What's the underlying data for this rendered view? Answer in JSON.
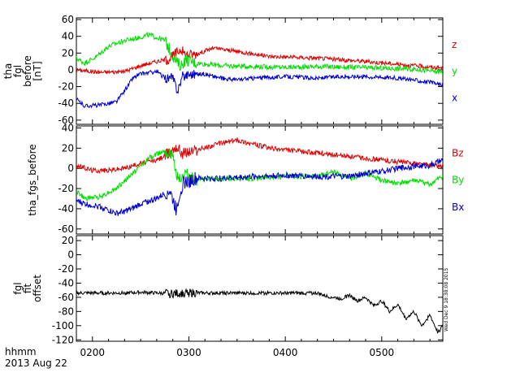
{
  "chart_data": [
    {
      "type": "line",
      "ylabel_lines": [
        "tha",
        "fgl",
        "before",
        "[nT]"
      ],
      "ylim": [
        -65,
        62
      ],
      "yticks": [
        -60,
        -40,
        -20,
        0,
        20,
        40,
        60
      ],
      "xlim_minutes": [
        110,
        338
      ],
      "series": [
        {
          "name": "z",
          "color": "#dd0000",
          "x_minutes": [
            110,
            125,
            140,
            150,
            160,
            168,
            172,
            175,
            178,
            185,
            195,
            210,
            230,
            260,
            290,
            320,
            338
          ],
          "y": [
            0,
            -3,
            -2,
            5,
            10,
            13,
            20,
            25,
            18,
            19,
            26,
            22,
            16,
            14,
            10,
            5,
            2
          ],
          "noise": 2.5
        },
        {
          "name": "y",
          "color": "#00dd00",
          "x_minutes": [
            110,
            115,
            122,
            130,
            140,
            148,
            155,
            165,
            172,
            175,
            178,
            185,
            200,
            220,
            240,
            260,
            280,
            300,
            320,
            338
          ],
          "y": [
            14,
            8,
            15,
            28,
            35,
            38,
            42,
            35,
            10,
            5,
            12,
            8,
            5,
            4,
            3,
            4,
            3,
            2,
            1,
            -3
          ],
          "noise": 3
        },
        {
          "name": "x",
          "color": "#0000cc",
          "x_minutes": [
            110,
            115,
            125,
            135,
            140,
            145,
            150,
            160,
            165,
            170,
            173,
            176,
            180,
            190,
            200,
            210,
            220,
            240,
            260,
            275,
            290,
            305,
            320,
            330,
            338
          ],
          "y": [
            -35,
            -43,
            -42,
            -38,
            -25,
            -10,
            -5,
            -2,
            -10,
            -10,
            -25,
            -8,
            -5,
            -5,
            -10,
            -12,
            -10,
            -8,
            -10,
            -8,
            -8,
            -9,
            -12,
            -15,
            -18
          ],
          "noise": 2.5
        }
      ]
    },
    {
      "type": "line",
      "ylabel_lines": [
        "tha_fgs_before"
      ],
      "ylim": [
        -65,
        42
      ],
      "yticks": [
        -60,
        -40,
        -20,
        0,
        20,
        40
      ],
      "xlim_minutes": [
        110,
        338
      ],
      "series": [
        {
          "name": "Bz",
          "color": "#dd0000",
          "x_minutes": [
            110,
            120,
            130,
            140,
            150,
            160,
            168,
            172,
            176,
            185,
            200,
            210,
            230,
            260,
            290,
            320,
            338
          ],
          "y": [
            3,
            -2,
            -2,
            0,
            5,
            8,
            15,
            22,
            15,
            18,
            25,
            28,
            20,
            15,
            10,
            5,
            2
          ],
          "noise": 2.5
        },
        {
          "name": "By",
          "color": "#00dd00",
          "x_minutes": [
            110,
            115,
            125,
            135,
            145,
            155,
            165,
            170,
            172,
            175,
            178,
            185,
            200,
            220,
            240,
            260,
            270,
            280,
            290,
            300,
            310,
            320,
            330,
            338
          ],
          "y": [
            -22,
            -30,
            -28,
            -20,
            -5,
            10,
            18,
            12,
            -5,
            -10,
            -5,
            -12,
            -10,
            -10,
            -8,
            -8,
            -3,
            -10,
            -5,
            -12,
            -15,
            -12,
            -16,
            -8
          ],
          "noise": 2.5
        },
        {
          "name": "Bx",
          "color": "#0000cc",
          "x_minutes": [
            110,
            115,
            125,
            135,
            145,
            150,
            160,
            168,
            172,
            176,
            185,
            200,
            220,
            240,
            260,
            280,
            290,
            300,
            310,
            320,
            330,
            338
          ],
          "y": [
            -32,
            -35,
            -38,
            -45,
            -40,
            -35,
            -30,
            -22,
            -40,
            -15,
            -10,
            -10,
            -8,
            -7,
            -8,
            -8,
            -5,
            -3,
            0,
            2,
            3,
            8
          ],
          "noise": 3
        }
      ]
    },
    {
      "type": "line",
      "ylabel_lines": [
        "fgl",
        "fit",
        "offset"
      ],
      "ylim": [
        -122,
        27
      ],
      "yticks": [
        -120,
        -100,
        -80,
        -60,
        -40,
        -20,
        0,
        20
      ],
      "xlim_minutes": [
        110,
        338
      ],
      "series": [
        {
          "name": "",
          "color": "#000000",
          "x_minutes": [
            110,
            140,
            150,
            160,
            170,
            180,
            200,
            220,
            240,
            260,
            265,
            270,
            275,
            280,
            285,
            290,
            295,
            300,
            305,
            310,
            315,
            320,
            325,
            330,
            335,
            338
          ],
          "y": [
            -54,
            -54,
            -53,
            -54,
            -55,
            -54,
            -54,
            -54,
            -54,
            -54,
            -58,
            -60,
            -62,
            -57,
            -65,
            -60,
            -72,
            -65,
            -80,
            -70,
            -90,
            -80,
            -100,
            -85,
            -110,
            -100
          ],
          "noise": 2.5
        }
      ]
    }
  ],
  "x_axis": {
    "tick_labels": [
      "0200",
      "0300",
      "0400",
      "0500"
    ],
    "tick_minutes": [
      120,
      180,
      240,
      300
    ],
    "caption": "hhmm",
    "date": "2013 Aug 22"
  },
  "timestamp": "Wed Dec  9 18:38:08 2015"
}
